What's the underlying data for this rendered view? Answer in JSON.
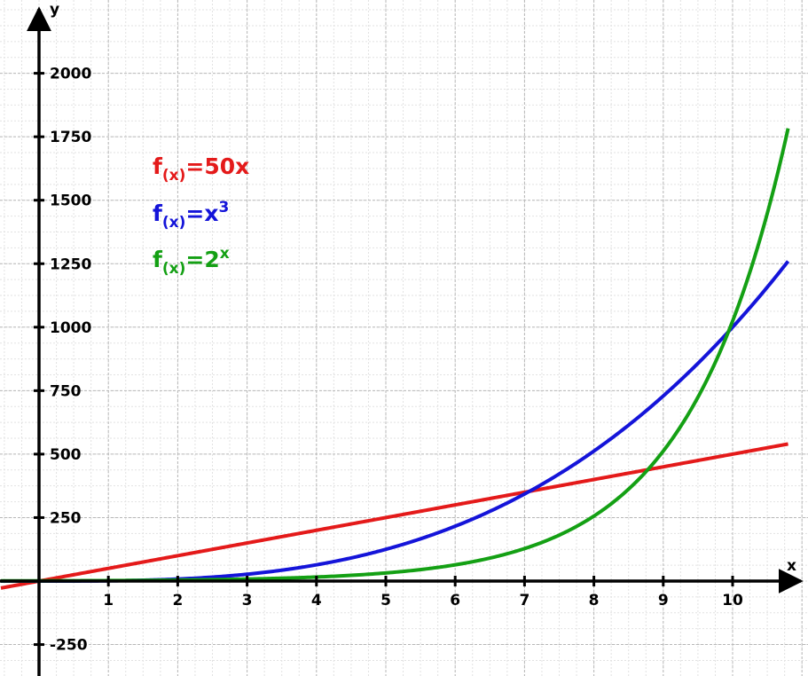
{
  "chart_data": {
    "type": "line",
    "xlabel": "x",
    "ylabel": "y",
    "xlim": [
      -0.55,
      10.8
    ],
    "ylim": [
      -300,
      2130
    ],
    "x_ticks": [
      1,
      2,
      3,
      4,
      5,
      6,
      7,
      8,
      9,
      10
    ],
    "y_ticks": [
      -250,
      250,
      500,
      750,
      1000,
      1250,
      1500,
      1750,
      2000
    ],
    "grid": true,
    "series": [
      {
        "name": "f(x)=50x",
        "function": "50x",
        "color": "#e41a1a",
        "x": [
          -0.55,
          0,
          1,
          2,
          3,
          4,
          5,
          6,
          7,
          8,
          9,
          10,
          10.8
        ],
        "y": [
          -27.5,
          0,
          50,
          100,
          150,
          200,
          250,
          300,
          350,
          400,
          450,
          500,
          540
        ]
      },
      {
        "name": "f(x)=x³",
        "function": "x³",
        "color": "#1414d9",
        "x": [
          -0.55,
          0,
          1,
          2,
          3,
          4,
          5,
          6,
          7,
          8,
          9,
          10,
          10.8
        ],
        "y": [
          -0.17,
          0,
          1,
          8,
          27,
          64,
          125,
          216,
          343,
          512,
          729,
          1000,
          1259.7
        ]
      },
      {
        "name": "f(x)=2ˣ",
        "function": "2ˣ",
        "color": "#14a014",
        "x": [
          -0.55,
          0,
          1,
          2,
          3,
          4,
          5,
          6,
          7,
          8,
          9,
          10,
          10.8
        ],
        "y": [
          0.68,
          1,
          2,
          4,
          8,
          16,
          32,
          64,
          128,
          256,
          512,
          1024,
          1782.9
        ]
      }
    ]
  },
  "legend": [
    {
      "base": "f",
      "sub": "(x)",
      "eq": "=50x",
      "sup": "",
      "color": "#e41a1a"
    },
    {
      "base": "f",
      "sub": "(x)",
      "eq": "=x",
      "sup": "3",
      "color": "#1414d9"
    },
    {
      "base": "f",
      "sub": "(x)",
      "eq": "=2",
      "sup": "x",
      "color": "#14a014"
    }
  ]
}
